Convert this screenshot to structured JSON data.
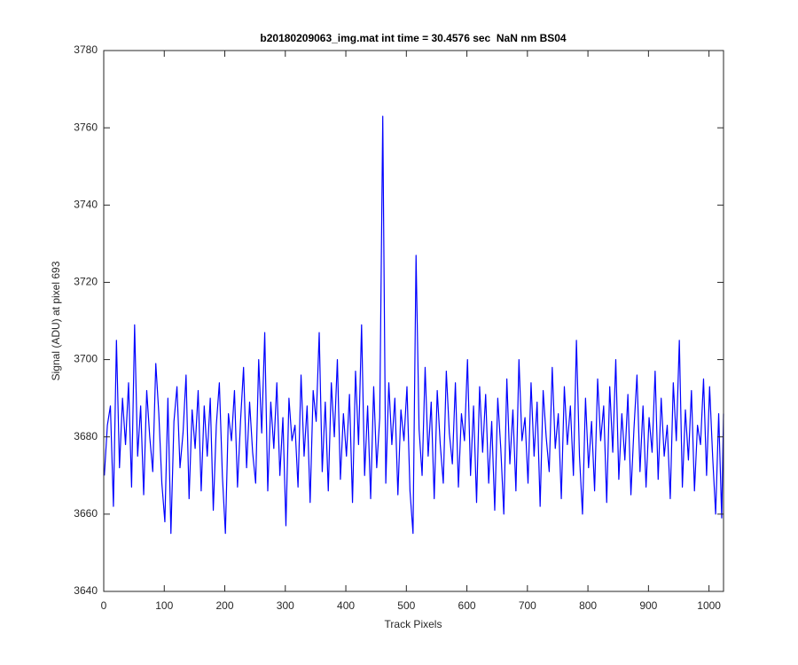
{
  "chart_data": {
    "type": "line",
    "title": "b20180209063_img.mat int time = 30.4576 sec  NaN nm BS04",
    "xlabel": "Track Pixels",
    "ylabel": "Signal (ADU) at pixel 693",
    "xlim": [
      0,
      1024
    ],
    "ylim": [
      3640,
      3780
    ],
    "xticks": [
      0,
      100,
      200,
      300,
      400,
      500,
      600,
      700,
      800,
      900,
      1000
    ],
    "yticks": [
      3640,
      3660,
      3680,
      3700,
      3720,
      3740,
      3760,
      3780
    ],
    "x": [
      1,
      6,
      11,
      16,
      21,
      26,
      31,
      36,
      41,
      46,
      51,
      56,
      61,
      66,
      71,
      76,
      81,
      86,
      91,
      96,
      101,
      106,
      111,
      116,
      121,
      126,
      131,
      136,
      141,
      146,
      151,
      156,
      161,
      166,
      171,
      176,
      181,
      186,
      191,
      196,
      201,
      206,
      211,
      216,
      221,
      226,
      231,
      236,
      241,
      246,
      251,
      256,
      261,
      266,
      271,
      276,
      281,
      286,
      291,
      296,
      301,
      306,
      311,
      316,
      321,
      326,
      331,
      336,
      341,
      346,
      351,
      356,
      361,
      366,
      371,
      376,
      381,
      386,
      391,
      396,
      401,
      406,
      411,
      416,
      421,
      426,
      431,
      436,
      441,
      446,
      451,
      456,
      461,
      466,
      471,
      476,
      481,
      486,
      491,
      496,
      501,
      506,
      511,
      516,
      521,
      526,
      531,
      536,
      541,
      546,
      551,
      556,
      561,
      566,
      571,
      576,
      581,
      586,
      591,
      596,
      601,
      606,
      611,
      616,
      621,
      626,
      631,
      636,
      641,
      646,
      651,
      656,
      661,
      666,
      671,
      676,
      681,
      686,
      691,
      696,
      701,
      706,
      711,
      716,
      721,
      726,
      731,
      736,
      741,
      746,
      751,
      756,
      761,
      766,
      771,
      776,
      781,
      786,
      791,
      796,
      801,
      806,
      811,
      816,
      821,
      826,
      831,
      836,
      841,
      846,
      851,
      856,
      861,
      866,
      871,
      876,
      881,
      886,
      891,
      896,
      901,
      906,
      911,
      916,
      921,
      926,
      931,
      936,
      941,
      946,
      951,
      956,
      961,
      966,
      971,
      976,
      981,
      986,
      991,
      996,
      1001,
      1006,
      1011,
      1016,
      1021,
      1024
    ],
    "series": [
      {
        "color": "#0000ff",
        "values": [
          3670,
          3683,
          3688,
          3662,
          3705,
          3672,
          3690,
          3678,
          3694,
          3667,
          3709,
          3675,
          3688,
          3665,
          3692,
          3680,
          3671,
          3699,
          3686,
          3668,
          3658,
          3690,
          3655,
          3684,
          3693,
          3672,
          3681,
          3696,
          3664,
          3687,
          3677,
          3692,
          3666,
          3688,
          3675,
          3690,
          3661,
          3683,
          3694,
          3670,
          3655,
          3686,
          3679,
          3692,
          3667,
          3684,
          3698,
          3672,
          3689,
          3676,
          3668,
          3700,
          3681,
          3707,
          3666,
          3689,
          3677,
          3694,
          3670,
          3685,
          3657,
          3690,
          3679,
          3683,
          3667,
          3696,
          3675,
          3688,
          3663,
          3692,
          3684,
          3707,
          3671,
          3689,
          3666,
          3694,
          3680,
          3700,
          3669,
          3686,
          3675,
          3691,
          3663,
          3697,
          3678,
          3709,
          3670,
          3688,
          3664,
          3693,
          3672,
          3685,
          3763,
          3668,
          3694,
          3678,
          3690,
          3665,
          3687,
          3679,
          3693,
          3666,
          3655,
          3727,
          3682,
          3670,
          3698,
          3675,
          3689,
          3664,
          3692,
          3678,
          3668,
          3697,
          3681,
          3673,
          3694,
          3667,
          3686,
          3679,
          3700,
          3670,
          3688,
          3663,
          3693,
          3676,
          3691,
          3668,
          3684,
          3661,
          3690,
          3677,
          3660,
          3695,
          3673,
          3687,
          3666,
          3700,
          3679,
          3685,
          3668,
          3694,
          3675,
          3689,
          3662,
          3692,
          3680,
          3671,
          3698,
          3677,
          3686,
          3664,
          3693,
          3678,
          3688,
          3670,
          3705,
          3675,
          3660,
          3690,
          3672,
          3684,
          3666,
          3695,
          3679,
          3688,
          3663,
          3693,
          3676,
          3700,
          3669,
          3686,
          3674,
          3691,
          3665,
          3682,
          3696,
          3671,
          3688,
          3667,
          3685,
          3676,
          3697,
          3669,
          3690,
          3675,
          3683,
          3664,
          3694,
          3679,
          3705,
          3667,
          3687,
          3674,
          3692,
          3666,
          3683,
          3678,
          3695,
          3670,
          3693,
          3675,
          3660,
          3686,
          3659,
          3686
        ]
      }
    ]
  }
}
